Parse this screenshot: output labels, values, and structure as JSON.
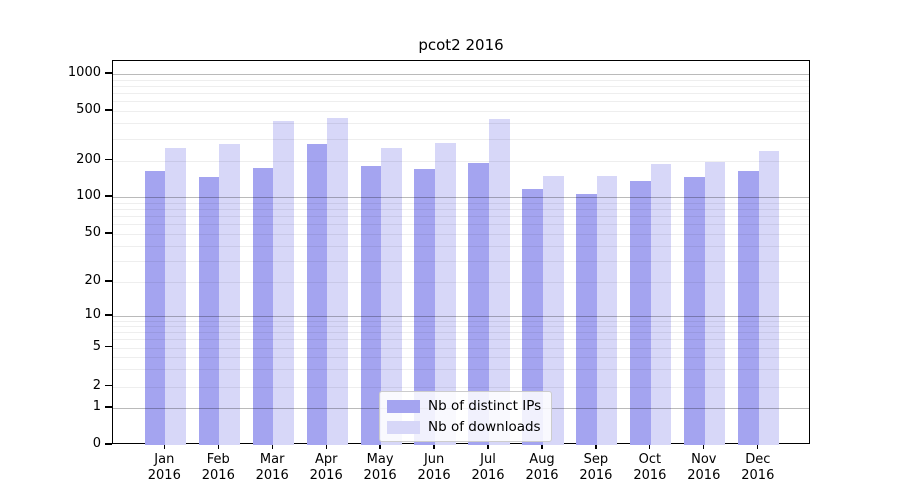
{
  "title": "pcot2 2016",
  "legend": {
    "items": [
      {
        "label": "Nb of distinct IPs",
        "color": "#a4a4f0"
      },
      {
        "label": "Nb of downloads",
        "color": "#d7d7f8"
      }
    ]
  },
  "chart_data": {
    "type": "bar",
    "title": "pcot2 2016",
    "categories": [
      "Jan 2016",
      "Feb 2016",
      "Mar 2016",
      "Apr 2016",
      "May 2016",
      "Jun 2016",
      "Jul 2016",
      "Aug 2016",
      "Sep 2016",
      "Oct 2016",
      "Nov 2016",
      "Dec 2016"
    ],
    "series": [
      {
        "name": "Nb of distinct IPs",
        "color": "#a4a4f0",
        "values": [
          165,
          146,
          172,
          272,
          182,
          169,
          190,
          116,
          106,
          136,
          147,
          164
        ]
      },
      {
        "name": "Nb of downloads",
        "color": "#d7d7f8",
        "values": [
          252,
          272,
          415,
          438,
          253,
          276,
          430,
          148,
          148,
          186,
          194,
          237
        ]
      }
    ],
    "xlabel": "",
    "ylabel": "",
    "yscale": "symlog",
    "yticks": [
      1000,
      500,
      200,
      100,
      50,
      20,
      10,
      5,
      2,
      1,
      0
    ],
    "ylim": [
      0,
      1300
    ],
    "grid": "horizontal, minor log gridlines, majors darker, drawn over bars",
    "legend_position": "lower center inside plot"
  }
}
